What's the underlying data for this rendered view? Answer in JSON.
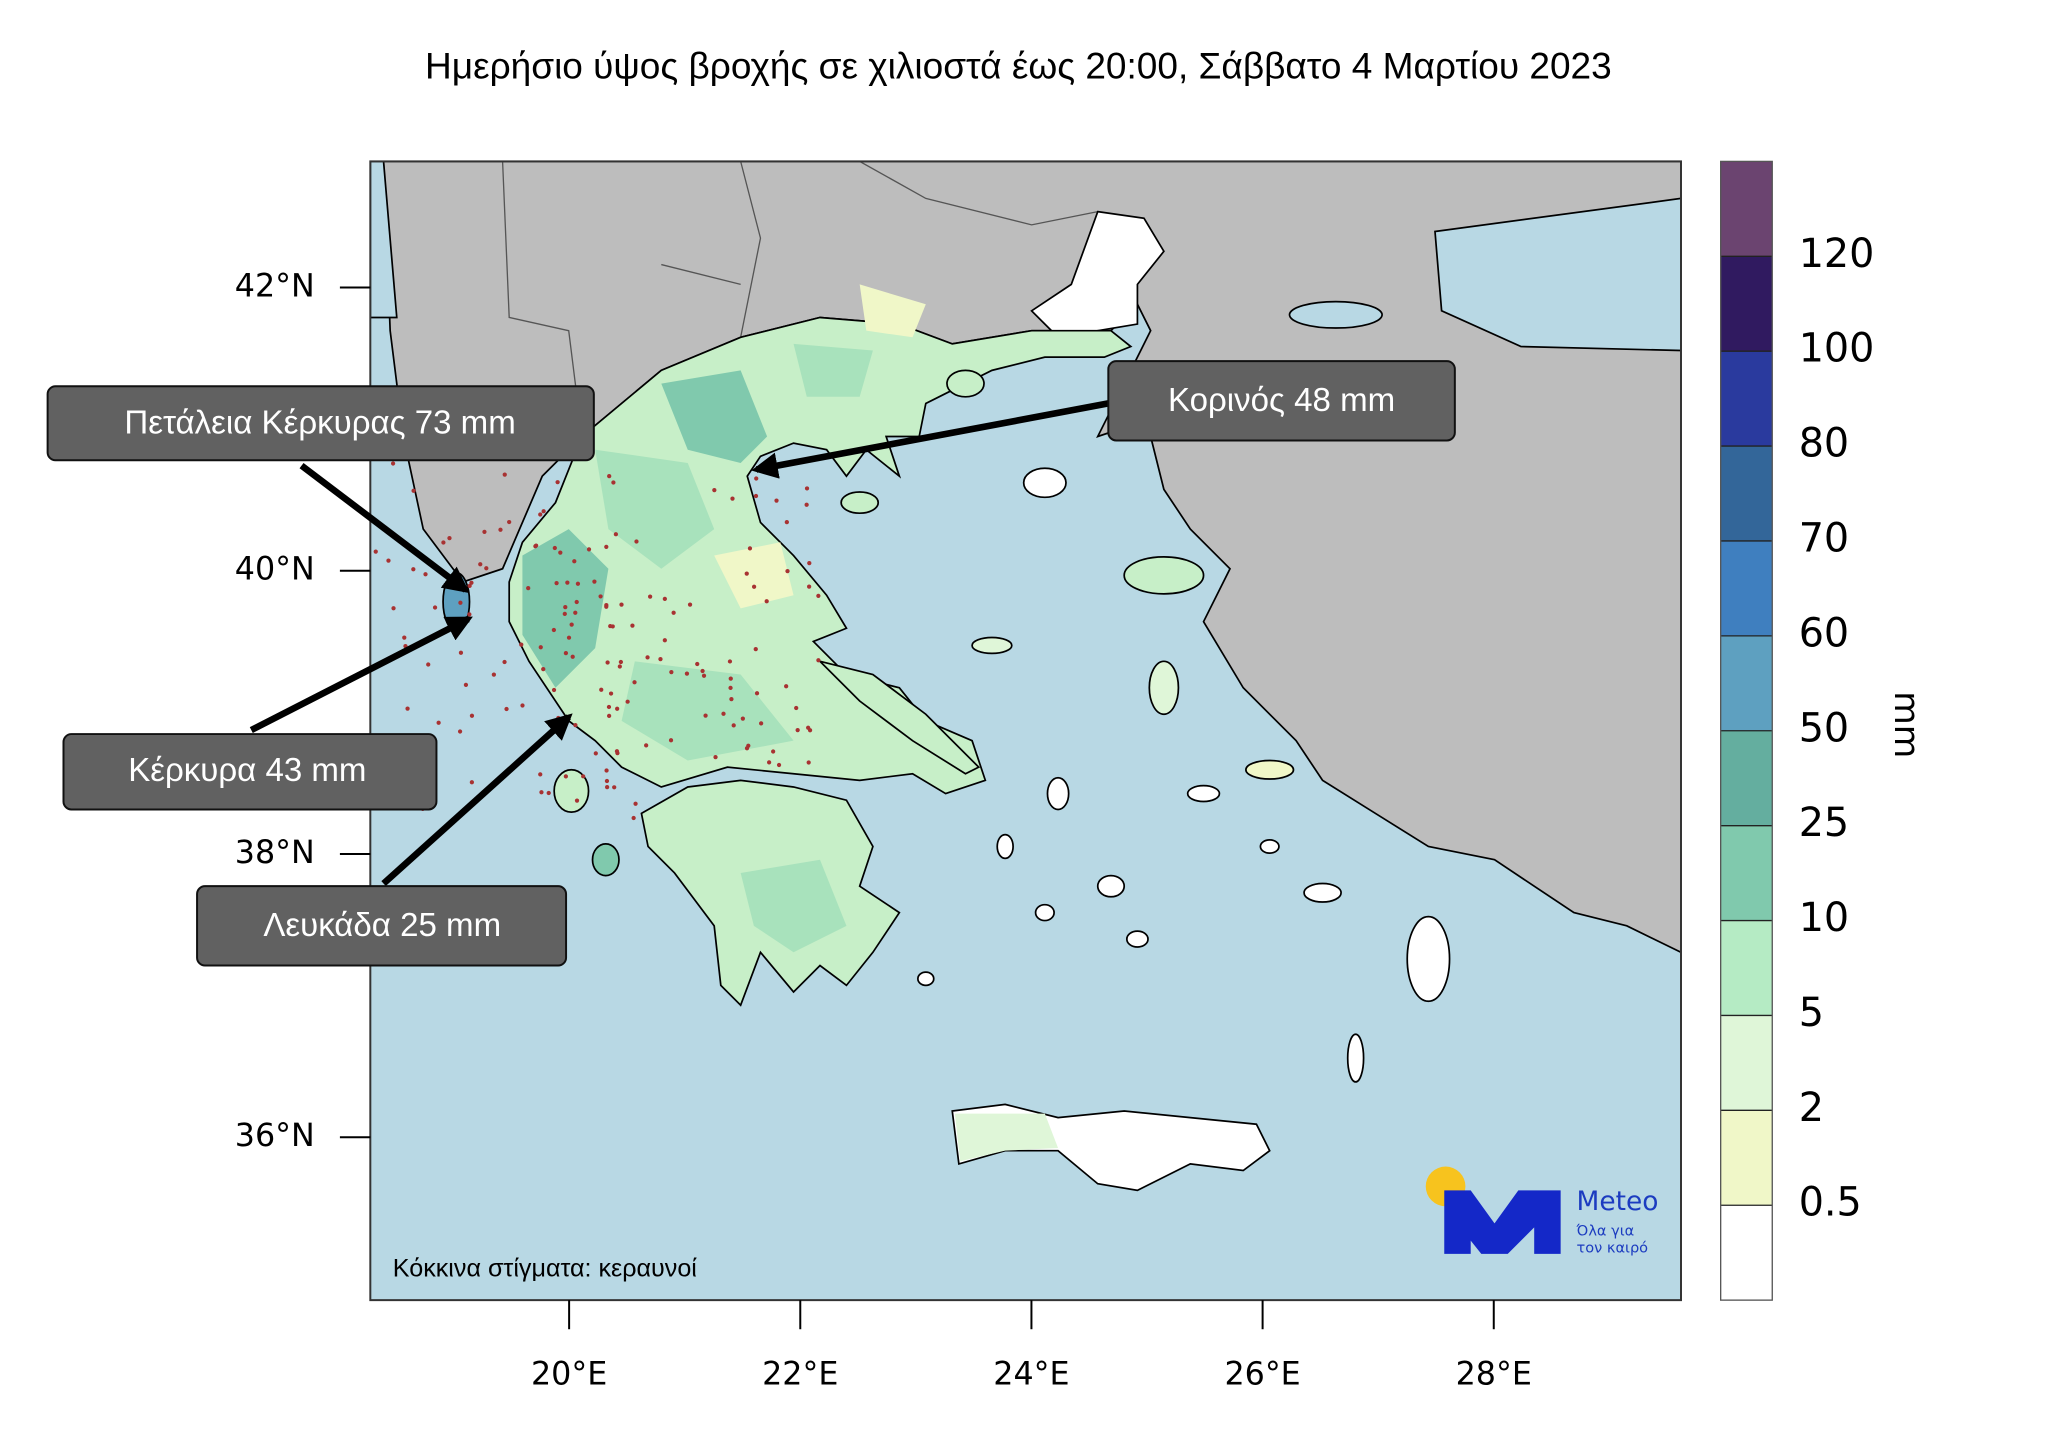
{
  "title": "Ημερήσιο ύψος βροχής σε χιλιοστά έως 20:00, Σάββατο 4 Μαρτίου 2023",
  "map": {
    "lonlim": [
      18.28,
      29.62
    ],
    "latlim": [
      34.85,
      42.89
    ],
    "lon_ticks": [
      {
        "value": 20,
        "label": "20°E"
      },
      {
        "value": 22,
        "label": "22°E"
      },
      {
        "value": 24,
        "label": "24°E"
      },
      {
        "value": 26,
        "label": "26°E"
      },
      {
        "value": 28,
        "label": "28°E"
      }
    ],
    "lat_ticks": [
      {
        "value": 42,
        "label": "42°N"
      },
      {
        "value": 40,
        "label": "40°N"
      },
      {
        "value": 38,
        "label": "38°N"
      },
      {
        "value": 36,
        "label": "36°N"
      }
    ],
    "note": "Κόκκινα στίγματα: κεραυνοί"
  },
  "colorbar": {
    "label": "mm",
    "levels": [
      0.5,
      2,
      5,
      10,
      25,
      50,
      60,
      70,
      80,
      100,
      120
    ],
    "colors": [
      "#ffffff",
      "#f0f7c8",
      "#dff6d8",
      "#b5ebc4",
      "#80c9ad",
      "#64ae9f",
      "#5ea0c0",
      "#3f7fbf",
      "#336699",
      "#2a3a9e",
      "#301a60",
      "#6b4470"
    ]
  },
  "callouts": [
    {
      "text": "Πετάλεια Κέρκυρας 73 mm"
    },
    {
      "text": "Κορινός 48 mm"
    },
    {
      "text": "Κέρκυρα 43 mm"
    },
    {
      "text": "Λευκάδα 25 mm"
    }
  ],
  "logo": {
    "name": "Meteo",
    "slogan": [
      "Όλα για",
      "τον καιρό"
    ]
  }
}
